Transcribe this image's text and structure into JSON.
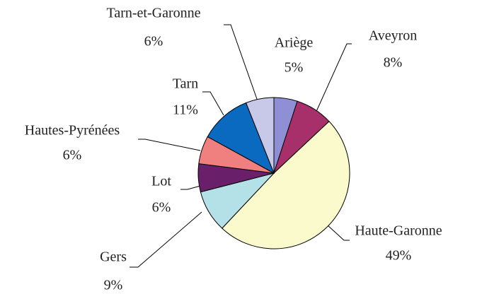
{
  "chart_data": {
    "type": "pie",
    "categories": [
      "Ariège",
      "Aveyron",
      "Haute-Garonne",
      "Gers",
      "Lot",
      "Hautes-Pyrénées",
      "Tarn",
      "Tarn-et-Garonne"
    ],
    "values": [
      5,
      8,
      49,
      9,
      6,
      6,
      11,
      6
    ],
    "value_labels": [
      "5%",
      "8%",
      "49%",
      "9%",
      "6%",
      "6%",
      "11%",
      "6%"
    ],
    "colors": [
      "#8f8fd6",
      "#a8306a",
      "#fafacc",
      "#b4e0e8",
      "#6a1f6a",
      "#f08080",
      "#0a6abf",
      "#c8c8e8"
    ]
  }
}
